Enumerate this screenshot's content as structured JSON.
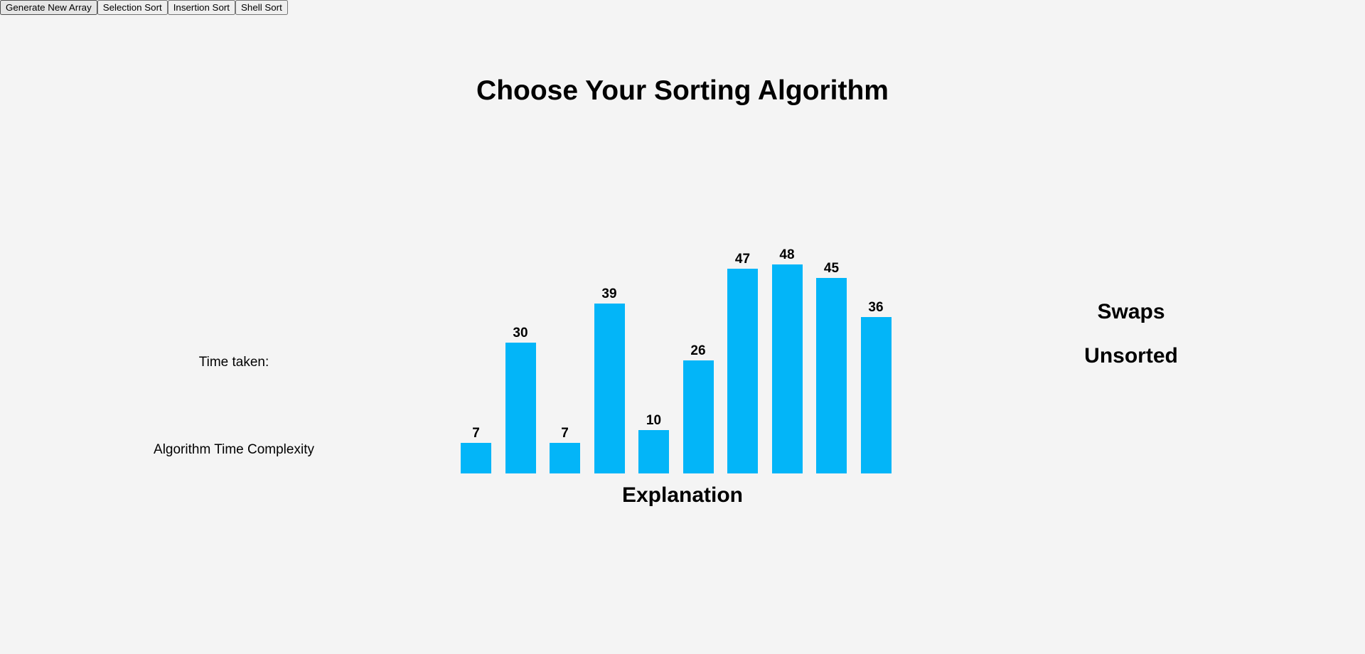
{
  "title": "Choose Your Sorting Algorithm",
  "buttons": [
    "Generate New Array",
    "Selection Sort",
    "Insertion Sort",
    "Shell Sort"
  ],
  "time_taken_label": "Time taken:",
  "complexity_label": "Algorithm Time Complexity",
  "array": {
    "values": [
      7,
      30,
      7,
      39,
      10,
      26,
      47,
      48,
      45,
      36
    ],
    "color": "#03b5f8"
  },
  "explanation_label": "Explanation",
  "swaps_label": "Swaps",
  "status": "Unsorted"
}
